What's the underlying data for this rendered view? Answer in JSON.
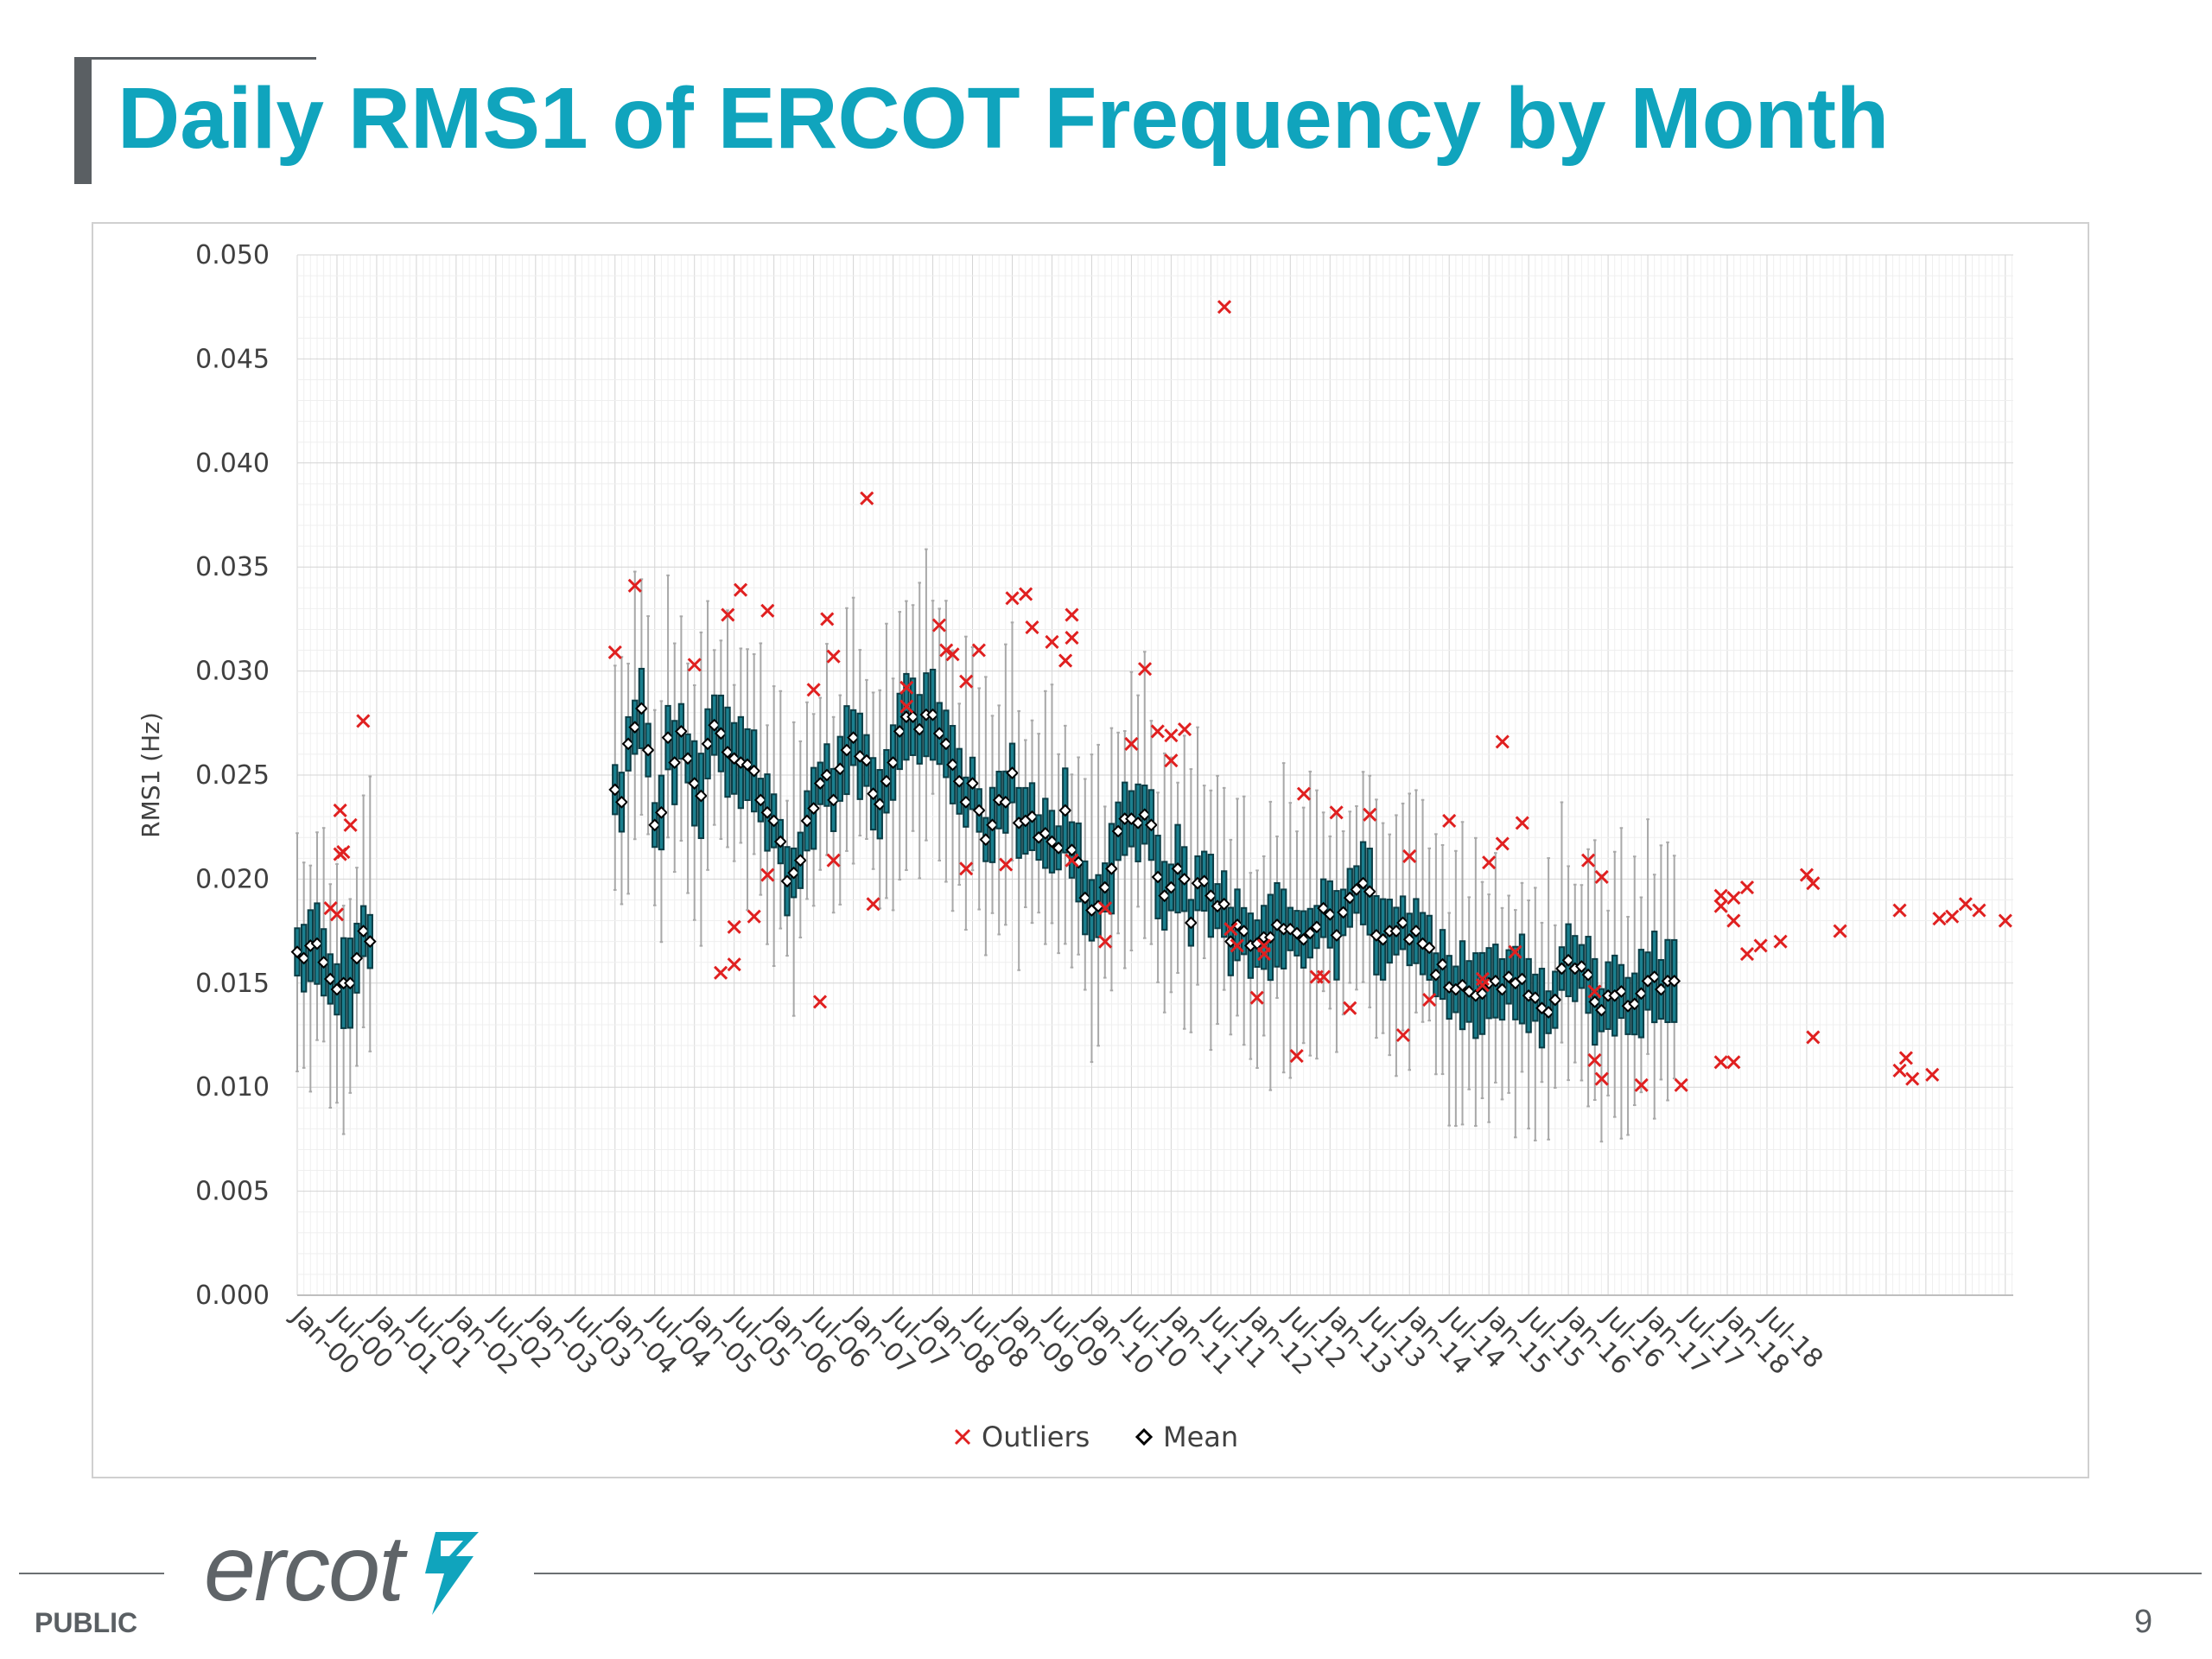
{
  "slide": {
    "title": "Daily RMS1 of ERCOT Frequency by Month",
    "public_label": "PUBLIC",
    "page_number": "9",
    "logo_text": "ercot",
    "accent_color": "#10a4bd"
  },
  "chart_data": {
    "type": "box",
    "title": "",
    "xlabel": "",
    "ylabel": "RMS1 (Hz)",
    "ylim": [
      0,
      0.05
    ],
    "yticks": [
      "0.000",
      "0.005",
      "0.010",
      "0.015",
      "0.020",
      "0.025",
      "0.030",
      "0.035",
      "0.040",
      "0.045",
      "0.050"
    ],
    "xticks": [
      "Jan-00",
      "Jul-00",
      "Jan-01",
      "Jul-01",
      "Jan-02",
      "Jul-02",
      "Jan-03",
      "Jul-03",
      "Jan-04",
      "Jul-04",
      "Jan-05",
      "Jul-05",
      "Jan-06",
      "Jul-06",
      "Jan-07",
      "Jul-07",
      "Jan-08",
      "Jul-08",
      "Jan-09",
      "Jul-09",
      "Jan-10",
      "Jul-10",
      "Jan-11",
      "Jul-11",
      "Jan-12",
      "Jul-12",
      "Jan-13",
      "Jul-13",
      "Jan-14",
      "Jul-14",
      "Jan-15",
      "Jul-15",
      "Jan-16",
      "Jul-16",
      "Jan-17",
      "Jul-17",
      "Jan-18",
      "Jul-18"
    ],
    "grid": true,
    "legend_position": "bottom",
    "legend": [
      {
        "label": "Outliers",
        "marker": "x",
        "color": "#e02020"
      },
      {
        "label": "Mean",
        "marker": "diamond",
        "color": "#000000"
      }
    ],
    "box_color": "#1a7f8e",
    "whisker_color": "#a8a8a8",
    "monthly_mean": [
      {
        "from": "Jan-00",
        "values": [
          0.0165,
          0.0162,
          0.0168,
          0.0169,
          0.016,
          0.0152,
          0.0147,
          0.015,
          0.015,
          0.0162,
          0.0175,
          0.017
        ]
      },
      {
        "from": "Jan-04",
        "values": [
          0.0243,
          0.0237,
          0.0265,
          0.0273,
          0.0282,
          0.0262,
          0.0226,
          0.0232,
          0.0268,
          0.0256,
          0.0271,
          0.0258,
          0.0246,
          0.024,
          0.0265,
          0.0274,
          0.027,
          0.0261,
          0.0258,
          0.0256,
          0.0255,
          0.0252,
          0.0238,
          0.0232,
          0.0228,
          0.0218,
          0.0199,
          0.0203,
          0.0209,
          0.0228,
          0.0234,
          0.0246,
          0.025,
          0.0238,
          0.0253,
          0.0262,
          0.0268,
          0.0259,
          0.0257,
          0.0241,
          0.0236,
          0.0247,
          0.0256,
          0.0271,
          0.0278,
          0.0278,
          0.0272,
          0.0279,
          0.0279,
          0.027,
          0.0265,
          0.0255,
          0.0247,
          0.0237,
          0.0246,
          0.0233,
          0.0219,
          0.0226,
          0.0238,
          0.0237,
          0.0251,
          0.0227,
          0.0228,
          0.023,
          0.022,
          0.0222,
          0.0218,
          0.0215,
          0.0233,
          0.0214,
          0.0208,
          0.0191,
          0.0185,
          0.0187,
          0.0196,
          0.0205,
          0.0223,
          0.0229,
          0.0229,
          0.0227,
          0.0231,
          0.0226,
          0.0201,
          0.0192,
          0.0196,
          0.0205,
          0.02,
          0.0179,
          0.0198,
          0.0199,
          0.0192,
          0.0187,
          0.0188,
          0.017,
          0.0178,
          0.0175,
          0.0168,
          0.0169,
          0.0172,
          0.0172,
          0.0178,
          0.0176,
          0.0176,
          0.0174,
          0.0171,
          0.0174,
          0.0177,
          0.0186,
          0.0183,
          0.0173,
          0.0184,
          0.0191,
          0.0195,
          0.0198,
          0.0194,
          0.0173,
          0.0171,
          0.0175,
          0.0175,
          0.0179,
          0.0171,
          0.0175,
          0.0169,
          0.0167,
          0.0154,
          0.0159,
          0.0148,
          0.0147,
          0.0149,
          0.0146,
          0.0144,
          0.0145,
          0.015,
          0.0151,
          0.0147,
          0.0153,
          0.015,
          0.0152,
          0.0144,
          0.0143,
          0.0138,
          0.0136,
          0.0142,
          0.0157,
          0.0161,
          0.0157,
          0.0158,
          0.0154,
          0.0141,
          0.0137,
          0.0144,
          0.0144,
          0.0146,
          0.0139,
          0.014,
          0.0145,
          0.0151,
          0.0153,
          0.0147,
          0.0151,
          0.0151
        ]
      }
    ],
    "outliers": [
      [
        2000.42,
        0.0186
      ],
      [
        2000.5,
        0.0183
      ],
      [
        2000.54,
        0.0233
      ],
      [
        2000.54,
        0.0212
      ],
      [
        2000.58,
        0.0213
      ],
      [
        2000.67,
        0.0226
      ],
      [
        2000.83,
        0.0276
      ],
      [
        2004.0,
        0.0309
      ],
      [
        2004.25,
        0.0341
      ],
      [
        2005.0,
        0.0303
      ],
      [
        2005.33,
        0.0155
      ],
      [
        2005.42,
        0.0327
      ],
      [
        2005.5,
        0.0159
      ],
      [
        2005.5,
        0.0177
      ],
      [
        2005.58,
        0.0339
      ],
      [
        2005.75,
        0.0182
      ],
      [
        2005.92,
        0.0329
      ],
      [
        2005.92,
        0.0202
      ],
      [
        2006.5,
        0.0291
      ],
      [
        2006.58,
        0.0141
      ],
      [
        2006.67,
        0.0325
      ],
      [
        2006.75,
        0.0307
      ],
      [
        2006.75,
        0.0209
      ],
      [
        2007.17,
        0.0383
      ],
      [
        2007.25,
        0.0188
      ],
      [
        2007.67,
        0.0292
      ],
      [
        2007.67,
        0.0283
      ],
      [
        2008.08,
        0.0322
      ],
      [
        2008.17,
        0.031
      ],
      [
        2008.25,
        0.0308
      ],
      [
        2008.42,
        0.0295
      ],
      [
        2008.42,
        0.0205
      ],
      [
        2008.58,
        0.031
      ],
      [
        2008.92,
        0.0207
      ],
      [
        2009.0,
        0.0335
      ],
      [
        2009.17,
        0.0337
      ],
      [
        2009.25,
        0.0321
      ],
      [
        2009.5,
        0.0314
      ],
      [
        2009.67,
        0.0305
      ],
      [
        2009.75,
        0.0316
      ],
      [
        2009.75,
        0.0327
      ],
      [
        2009.75,
        0.0209
      ],
      [
        2010.17,
        0.0186
      ],
      [
        2010.17,
        0.017
      ],
      [
        2010.5,
        0.0265
      ],
      [
        2010.67,
        0.0301
      ],
      [
        2010.83,
        0.0271
      ],
      [
        2011.0,
        0.0269
      ],
      [
        2011.0,
        0.0257
      ],
      [
        2011.17,
        0.0272
      ],
      [
        2011.67,
        0.0475
      ],
      [
        2011.75,
        0.0176
      ],
      [
        2011.83,
        0.0168
      ],
      [
        2012.08,
        0.0143
      ],
      [
        2012.17,
        0.0168
      ],
      [
        2012.17,
        0.0164
      ],
      [
        2012.58,
        0.0115
      ],
      [
        2012.67,
        0.0241
      ],
      [
        2012.83,
        0.0153
      ],
      [
        2012.92,
        0.0153
      ],
      [
        2013.08,
        0.0232
      ],
      [
        2013.25,
        0.0138
      ],
      [
        2013.5,
        0.0231
      ],
      [
        2013.92,
        0.0125
      ],
      [
        2014.0,
        0.0211
      ],
      [
        2014.25,
        0.0142
      ],
      [
        2014.5,
        0.0228
      ],
      [
        2014.92,
        0.0152
      ],
      [
        2014.92,
        0.0149
      ],
      [
        2015.0,
        0.0208
      ],
      [
        2015.17,
        0.0217
      ],
      [
        2015.17,
        0.0266
      ],
      [
        2015.33,
        0.0165
      ],
      [
        2015.42,
        0.0227
      ],
      [
        2016.25,
        0.0209
      ],
      [
        2016.33,
        0.0146
      ],
      [
        2016.33,
        0.0113
      ],
      [
        2016.42,
        0.0104
      ],
      [
        2016.42,
        0.0201
      ],
      [
        2016.92,
        0.0101
      ],
      [
        2017.42,
        0.0101
      ],
      [
        2017.92,
        0.0192
      ],
      [
        2017.92,
        0.0187
      ],
      [
        2017.92,
        0.0112
      ],
      [
        2018.08,
        0.0191
      ],
      [
        2018.08,
        0.0112
      ],
      [
        2018.08,
        0.018
      ],
      [
        2018.25,
        0.0164
      ],
      [
        2018.25,
        0.0196
      ],
      [
        2018.42,
        0.0168
      ],
      [
        2018.67,
        0.017
      ],
      [
        2019.0,
        0.0202
      ],
      [
        2019.08,
        0.0198
      ],
      [
        2019.08,
        0.0124
      ],
      [
        2019.42,
        0.0175
      ],
      [
        2020.17,
        0.0185
      ],
      [
        2020.17,
        0.0108
      ],
      [
        2020.25,
        0.0114
      ],
      [
        2020.33,
        0.0104
      ],
      [
        2020.58,
        0.0106
      ],
      [
        2020.67,
        0.0181
      ],
      [
        2020.83,
        0.0182
      ],
      [
        2021.0,
        0.0188
      ],
      [
        2021.17,
        0.0185
      ],
      [
        2021.5,
        0.018
      ]
    ]
  }
}
